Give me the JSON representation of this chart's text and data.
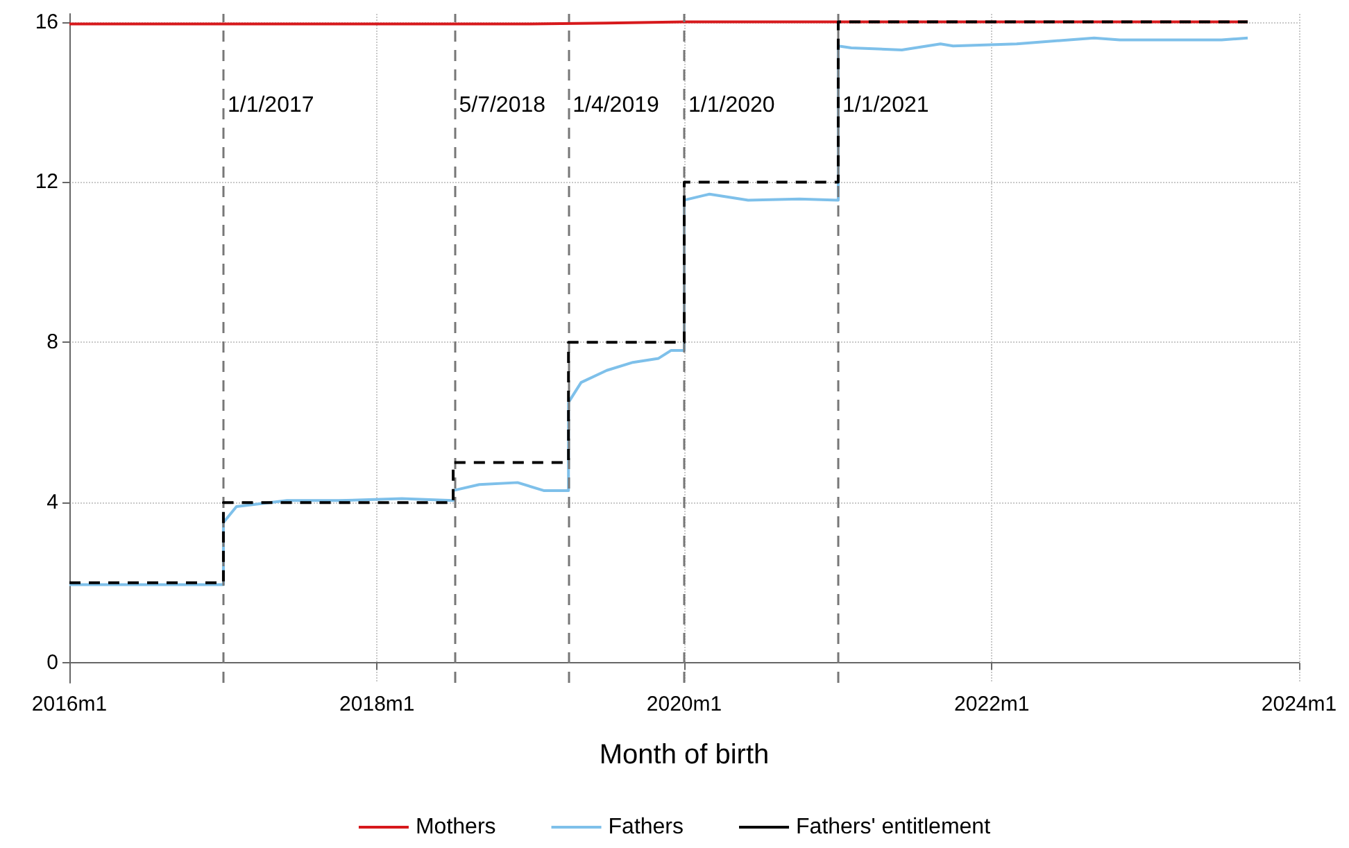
{
  "chart_data": {
    "type": "line",
    "xlabel": "Month of birth",
    "xlim": [
      "2016-01",
      "2024-01"
    ],
    "xticks": [
      {
        "value": "2016-01",
        "label": "2016m1"
      },
      {
        "value": "2018-01",
        "label": "2018m1"
      },
      {
        "value": "2020-01",
        "label": "2020m1"
      },
      {
        "value": "2022-01",
        "label": "2022m1"
      },
      {
        "value": "2024-01",
        "label": "2024m1"
      }
    ],
    "ylim": [
      -0.5,
      16.2
    ],
    "yticks": [
      0,
      4,
      8,
      12,
      16
    ],
    "grid": true,
    "legend": "bottom",
    "series": [
      {
        "name": "Mothers",
        "color": "#d7191c",
        "line_style": "solid",
        "x": [
          "2016-01",
          "2016-07",
          "2017-01",
          "2017-07",
          "2018-01",
          "2018-07",
          "2019-01",
          "2019-07",
          "2020-01",
          "2020-07",
          "2021-01",
          "2021-07",
          "2022-01",
          "2022-07",
          "2023-01",
          "2023-09"
        ],
        "values": [
          15.95,
          15.95,
          15.95,
          15.95,
          15.95,
          15.95,
          15.95,
          15.97,
          16,
          16,
          16,
          16,
          16,
          16,
          16,
          16
        ]
      },
      {
        "name": "Fathers",
        "color": "#7ec0ea",
        "line_style": "solid",
        "x": [
          "2016-01",
          "2016-07",
          "2017-01",
          "2017-01",
          "2017-02",
          "2017-06",
          "2017-10",
          "2018-03",
          "2018-07",
          "2018-07",
          "2018-09",
          "2018-12",
          "2019-02",
          "2019-04",
          "2019-04",
          "2019-05",
          "2019-07",
          "2019-09",
          "2019-11",
          "2019-12",
          "2020-01",
          "2020-01",
          "2020-03",
          "2020-06",
          "2020-10",
          "2021-01",
          "2021-01",
          "2021-02",
          "2021-06",
          "2021-09",
          "2021-10",
          "2022-03",
          "2022-09",
          "2022-11",
          "2023-07",
          "2023-09"
        ],
        "values": [
          1.95,
          1.95,
          1.95,
          3.5,
          3.9,
          4.05,
          4.05,
          4.1,
          4.05,
          4.3,
          4.45,
          4.5,
          4.3,
          4.3,
          6.5,
          7.0,
          7.3,
          7.5,
          7.6,
          7.8,
          7.8,
          11.55,
          11.7,
          11.55,
          11.58,
          11.55,
          15.4,
          15.35,
          15.3,
          15.45,
          15.4,
          15.45,
          15.6,
          15.55,
          15.55,
          15.6
        ]
      },
      {
        "name": "Fathers' entitlement",
        "type": "step",
        "color": "#000000",
        "line_style": "dashed",
        "x": [
          "2016-01",
          "2017-01",
          "2018-07",
          "2019-04",
          "2020-01",
          "2021-01",
          "2023-09"
        ],
        "values": [
          2,
          4,
          5,
          8,
          12,
          16,
          16
        ]
      }
    ],
    "ref_lines": [
      {
        "axis": "x",
        "value": "2017-01-01",
        "label": "1/1/2017",
        "color": "#777777",
        "line_style": "dashed"
      },
      {
        "axis": "x",
        "value": "2018-07-05",
        "label": "5/7/2018",
        "color": "#777777",
        "line_style": "dashed"
      },
      {
        "axis": "x",
        "value": "2019-04-01",
        "label": "1/4/2019",
        "color": "#777777",
        "line_style": "dashed"
      },
      {
        "axis": "x",
        "value": "2020-01-01",
        "label": "1/1/2020",
        "color": "#777777",
        "line_style": "dashed"
      },
      {
        "axis": "x",
        "value": "2021-01-01",
        "label": "1/1/2021",
        "color": "#777777",
        "line_style": "dashed"
      }
    ]
  }
}
